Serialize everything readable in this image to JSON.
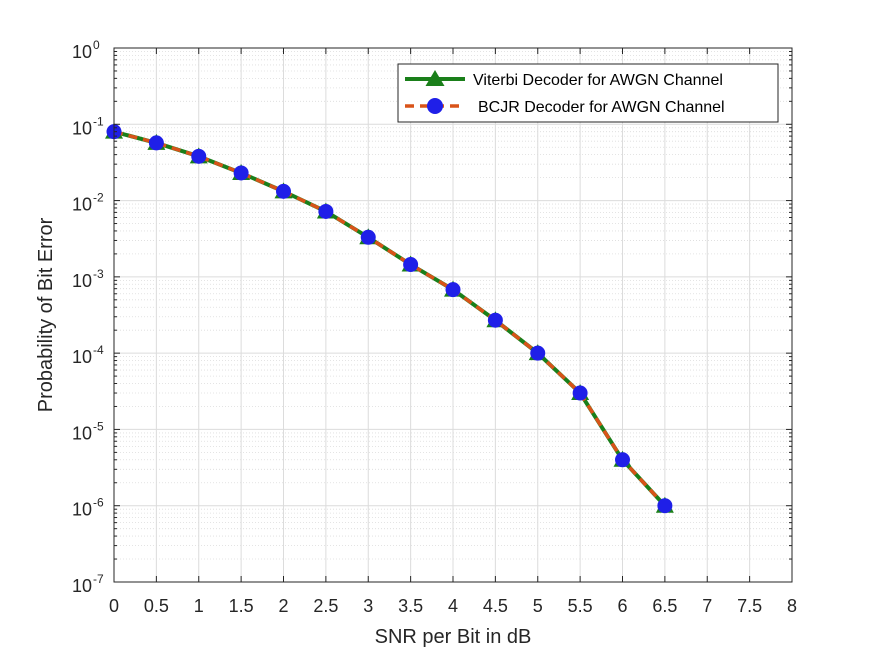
{
  "chart_data": {
    "type": "line",
    "xlabel": "SNR per Bit in dB",
    "ylabel": "Probability of Bit Error",
    "xlim": [
      0,
      8
    ],
    "ylim": [
      1e-07,
      1
    ],
    "yscale": "log",
    "grid": true,
    "minor_grid": true,
    "legend_position": "top-right",
    "x_ticks": [
      "0",
      "0.5",
      "1",
      "1.5",
      "2",
      "2.5",
      "3",
      "3.5",
      "4",
      "4.5",
      "5",
      "5.5",
      "6",
      "6.5",
      "7",
      "7.5",
      "8"
    ],
    "y_ticks": [
      {
        "base": "10",
        "exp": "0",
        "value": 1
      },
      {
        "base": "10",
        "exp": "-1",
        "value": 0.1
      },
      {
        "base": "10",
        "exp": "-2",
        "value": 0.01
      },
      {
        "base": "10",
        "exp": "-3",
        "value": 0.001
      },
      {
        "base": "10",
        "exp": "-4",
        "value": 0.0001
      },
      {
        "base": "10",
        "exp": "-5",
        "value": 1e-05
      },
      {
        "base": "10",
        "exp": "-6",
        "value": 1e-06
      },
      {
        "base": "10",
        "exp": "-7",
        "value": 1e-07
      }
    ],
    "x": [
      0,
      0.5,
      1,
      1.5,
      2,
      2.5,
      3,
      3.5,
      4,
      4.5,
      5,
      5.5,
      6,
      6.5
    ],
    "series": [
      {
        "name": "Viterbi Decoder for AWGN Channel",
        "color": "#1a7f1a",
        "marker": "triangle",
        "line_style": "solid",
        "values": [
          0.08,
          0.057,
          0.038,
          0.023,
          0.0132,
          0.0072,
          0.0033,
          0.00145,
          0.00068,
          0.00027,
          0.0001,
          3e-05,
          4e-06,
          1e-06
        ]
      },
      {
        "name": "BCJR Decoder for AWGN Channel",
        "color": "#d95319",
        "marker_color": "#1f1fe8",
        "marker": "circle",
        "line_style": "dashed",
        "values": [
          0.08,
          0.057,
          0.038,
          0.023,
          0.0132,
          0.0072,
          0.0033,
          0.00145,
          0.00068,
          0.00027,
          0.0001,
          3e-05,
          4e-06,
          1e-06
        ]
      }
    ]
  },
  "colors": {
    "grid": "#dcdcdc",
    "axis": "#262626",
    "background": "#ffffff"
  }
}
